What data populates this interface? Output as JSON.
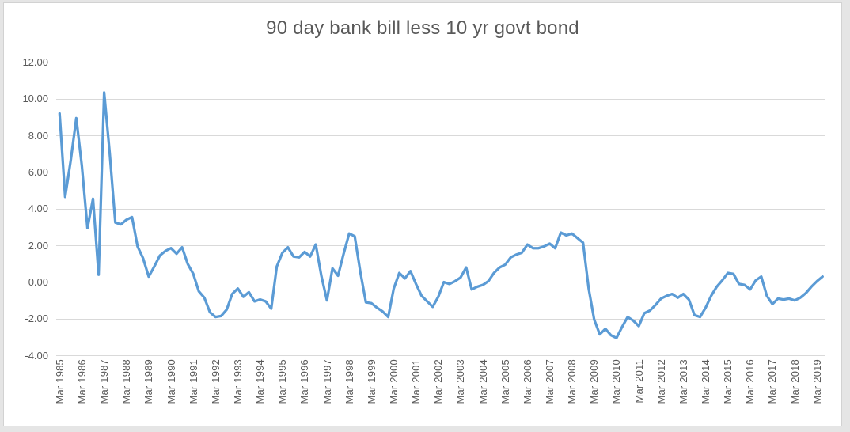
{
  "title": "90 day bank bill less 10 yr govt bond",
  "colors": {
    "line": "#5B9BD5",
    "text": "#595959",
    "gridline": "#D9D9D9",
    "chart_background": "#FFFFFF",
    "frame_border": "#D2D2D2",
    "outer_background": "#E5E5E5"
  },
  "y_axis": {
    "ticks": [
      "12.00",
      "10.00",
      "8.00",
      "6.00",
      "4.00",
      "2.00",
      "0.00",
      "-2.00",
      "-4.00"
    ],
    "max": 12,
    "min": -4,
    "step": 2
  },
  "x_axis": {
    "ticks": [
      "Mar 1985",
      "Mar 1986",
      "Mar 1987",
      "Mar 1988",
      "Mar 1989",
      "Mar 1990",
      "Mar 1991",
      "Mar 1992",
      "Mar 1993",
      "Mar 1994",
      "Mar 1995",
      "Mar 1996",
      "Mar 1997",
      "Mar 1998",
      "Mar 1999",
      "Mar 2000",
      "Mar 2001",
      "Mar 2002",
      "Mar 2003",
      "Mar 2004",
      "Mar 2005",
      "Mar 2006",
      "Mar 2007",
      "Mar 2008",
      "Mar 2009",
      "Mar 2010",
      "Mar 2011",
      "Mar 2012",
      "Mar 2013",
      "Mar 2014",
      "Mar 2015",
      "Mar 2016",
      "Mar 2017",
      "Mar 2018",
      "Mar 2019"
    ]
  },
  "chart_data": {
    "type": "line",
    "title": "90 day bank bill less 10 yr govt bond",
    "xlabel": "",
    "ylabel": "",
    "ylim": [
      -4,
      12
    ],
    "grid": true,
    "legend_position": "none",
    "frequency": "quarterly",
    "points": [
      [
        "Mar 1985",
        9.15
      ],
      [
        "Jun 1985",
        4.6
      ],
      [
        "Sep 1985",
        6.6
      ],
      [
        "Dec 1985",
        8.9
      ],
      [
        "Mar 1986",
        6.3
      ],
      [
        "Jun 1986",
        2.9
      ],
      [
        "Sep 1986",
        4.5
      ],
      [
        "Dec 1986",
        0.35
      ],
      [
        "Mar 1987",
        10.3
      ],
      [
        "Jun 1987",
        7.0
      ],
      [
        "Sep 1987",
        3.2
      ],
      [
        "Dec 1987",
        3.1
      ],
      [
        "Mar 1988",
        3.35
      ],
      [
        "Jun 1988",
        3.5
      ],
      [
        "Sep 1988",
        1.9
      ],
      [
        "Dec 1988",
        1.25
      ],
      [
        "Mar 1989",
        0.25
      ],
      [
        "Jun 1989",
        0.8
      ],
      [
        "Sep 1989",
        1.4
      ],
      [
        "Dec 1989",
        1.65
      ],
      [
        "Mar 1990",
        1.8
      ],
      [
        "Jun 1990",
        1.5
      ],
      [
        "Sep 1990",
        1.85
      ],
      [
        "Dec 1990",
        0.95
      ],
      [
        "Mar 1991",
        0.4
      ],
      [
        "Jun 1991",
        -0.55
      ],
      [
        "Sep 1991",
        -0.9
      ],
      [
        "Dec 1991",
        -1.7
      ],
      [
        "Mar 1992",
        -1.95
      ],
      [
        "Jun 1992",
        -1.9
      ],
      [
        "Sep 1992",
        -1.55
      ],
      [
        "Dec 1992",
        -0.7
      ],
      [
        "Mar 1993",
        -0.4
      ],
      [
        "Jun 1993",
        -0.85
      ],
      [
        "Sep 1993",
        -0.6
      ],
      [
        "Dec 1993",
        -1.1
      ],
      [
        "Mar 1994",
        -1.0
      ],
      [
        "Jun 1994",
        -1.1
      ],
      [
        "Sep 1994",
        -1.5
      ],
      [
        "Dec 1994",
        0.8
      ],
      [
        "Mar 1995",
        1.55
      ],
      [
        "Jun 1995",
        1.85
      ],
      [
        "Sep 1995",
        1.35
      ],
      [
        "Dec 1995",
        1.3
      ],
      [
        "Mar 1996",
        1.6
      ],
      [
        "Jun 1996",
        1.35
      ],
      [
        "Sep 1996",
        2.0
      ],
      [
        "Dec 1996",
        0.3
      ],
      [
        "Mar 1997",
        -1.05
      ],
      [
        "Jun 1997",
        0.7
      ],
      [
        "Sep 1997",
        0.3
      ],
      [
        "Dec 1997",
        1.5
      ],
      [
        "Mar 1998",
        2.6
      ],
      [
        "Jun 1998",
        2.45
      ],
      [
        "Sep 1998",
        0.5
      ],
      [
        "Dec 1998",
        -1.15
      ],
      [
        "Mar 1999",
        -1.2
      ],
      [
        "Jun 1999",
        -1.45
      ],
      [
        "Sep 1999",
        -1.65
      ],
      [
        "Dec 1999",
        -1.95
      ],
      [
        "Mar 2000",
        -0.4
      ],
      [
        "Jun 2000",
        0.45
      ],
      [
        "Sep 2000",
        0.15
      ],
      [
        "Dec 2000",
        0.55
      ],
      [
        "Mar 2001",
        -0.15
      ],
      [
        "Jun 2001",
        -0.8
      ],
      [
        "Sep 2001",
        -1.1
      ],
      [
        "Dec 2001",
        -1.4
      ],
      [
        "Mar 2002",
        -0.85
      ],
      [
        "Jun 2002",
        -0.05
      ],
      [
        "Sep 2002",
        -0.15
      ],
      [
        "Dec 2002",
        0.0
      ],
      [
        "Mar 2003",
        0.2
      ],
      [
        "Jun 2003",
        0.75
      ],
      [
        "Sep 2003",
        -0.45
      ],
      [
        "Dec 2003",
        -0.3
      ],
      [
        "Mar 2004",
        -0.2
      ],
      [
        "Jun 2004",
        0.0
      ],
      [
        "Sep 2004",
        0.45
      ],
      [
        "Dec 2004",
        0.75
      ],
      [
        "Mar 2005",
        0.9
      ],
      [
        "Jun 2005",
        1.3
      ],
      [
        "Sep 2005",
        1.45
      ],
      [
        "Dec 2005",
        1.55
      ],
      [
        "Mar 2006",
        2.0
      ],
      [
        "Jun 2006",
        1.8
      ],
      [
        "Sep 2006",
        1.8
      ],
      [
        "Dec 2006",
        1.9
      ],
      [
        "Mar 2007",
        2.05
      ],
      [
        "Jun 2007",
        1.8
      ],
      [
        "Sep 2007",
        2.65
      ],
      [
        "Dec 2007",
        2.5
      ],
      [
        "Mar 2008",
        2.6
      ],
      [
        "Jun 2008",
        2.35
      ],
      [
        "Sep 2008",
        2.1
      ],
      [
        "Dec 2008",
        -0.4
      ],
      [
        "Mar 2009",
        -2.1
      ],
      [
        "Jun 2009",
        -2.9
      ],
      [
        "Sep 2009",
        -2.6
      ],
      [
        "Dec 2009",
        -2.95
      ],
      [
        "Mar 2010",
        -3.1
      ],
      [
        "Jun 2010",
        -2.5
      ],
      [
        "Sep 2010",
        -1.95
      ],
      [
        "Dec 2010",
        -2.15
      ],
      [
        "Mar 2011",
        -2.45
      ],
      [
        "Jun 2011",
        -1.75
      ],
      [
        "Sep 2011",
        -1.6
      ],
      [
        "Dec 2011",
        -1.3
      ],
      [
        "Mar 2012",
        -0.95
      ],
      [
        "Jun 2012",
        -0.8
      ],
      [
        "Sep 2012",
        -0.7
      ],
      [
        "Dec 2012",
        -0.9
      ],
      [
        "Mar 2013",
        -0.7
      ],
      [
        "Jun 2013",
        -1.0
      ],
      [
        "Sep 2013",
        -1.85
      ],
      [
        "Dec 2013",
        -1.95
      ],
      [
        "Mar 2014",
        -1.45
      ],
      [
        "Jun 2014",
        -0.8
      ],
      [
        "Sep 2014",
        -0.3
      ],
      [
        "Dec 2014",
        0.05
      ],
      [
        "Mar 2015",
        0.45
      ],
      [
        "Jun 2015",
        0.4
      ],
      [
        "Sep 2015",
        -0.15
      ],
      [
        "Dec 2015",
        -0.2
      ],
      [
        "Mar 2016",
        -0.45
      ],
      [
        "Jun 2016",
        0.05
      ],
      [
        "Sep 2016",
        0.25
      ],
      [
        "Dec 2016",
        -0.8
      ],
      [
        "Mar 2017",
        -1.25
      ],
      [
        "Jun 2017",
        -0.95
      ],
      [
        "Sep 2017",
        -1.0
      ],
      [
        "Dec 2017",
        -0.95
      ],
      [
        "Mar 2018",
        -1.05
      ],
      [
        "Jun 2018",
        -0.9
      ],
      [
        "Sep 2018",
        -0.65
      ],
      [
        "Dec 2018",
        -0.3
      ],
      [
        "Mar 2019",
        0.0
      ],
      [
        "Jun 2019",
        0.25
      ]
    ]
  }
}
